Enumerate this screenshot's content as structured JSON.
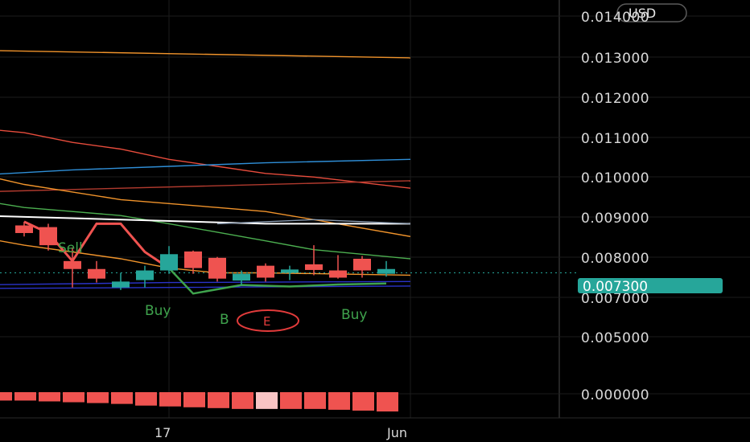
{
  "colors": {
    "background": "#000000",
    "grid": "#1c1c1c",
    "up": "#26a69a",
    "down": "#ef5350",
    "signal": "#3fa34d",
    "ema_white": "#ffffff",
    "ema_blue": "#2f8fd8",
    "ema_red": "#e74c3c",
    "ema_orange": "#f0932b",
    "ema_green": "#4caf50",
    "navy": "#2a33c9",
    "price_tag": "#26a69a"
  },
  "price_axis": {
    "currency": "USD",
    "tick_labels": [
      "0.014000",
      "0.013000",
      "0.012000",
      "0.011000",
      "0.010000",
      "0.009000",
      "0.008000",
      "0.007000",
      "0.005000",
      "0.000000"
    ],
    "current_price": "0.007300"
  },
  "time_axis": {
    "labels": [
      "17",
      "Jun"
    ]
  },
  "signals": {
    "buy_label": "Buy",
    "sell_label": "Sell",
    "b_label": "B",
    "e_label": "E"
  },
  "chart_data": {
    "type": "candlestick",
    "price_scale": "logarithmic",
    "interval": "daily",
    "date_range": [
      "2024-05-11",
      "2024-05-27"
    ],
    "ylim": [
      0.0071,
      0.0143
    ],
    "candles": [
      {
        "date": "2024-05-11",
        "open": 0.00836,
        "high": 0.00845,
        "low": 0.0081,
        "close": 0.00818
      },
      {
        "date": "2024-05-12",
        "open": 0.00832,
        "high": 0.0084,
        "low": 0.00778,
        "close": 0.0079
      },
      {
        "date": "2024-05-13",
        "open": 0.00755,
        "high": 0.00785,
        "low": 0.007,
        "close": 0.00738
      },
      {
        "date": "2024-05-14",
        "open": 0.00738,
        "high": 0.00755,
        "low": 0.0071,
        "close": 0.00718
      },
      {
        "date": "2024-05-15",
        "open": 0.007,
        "high": 0.0073,
        "low": 0.00695,
        "close": 0.00712
      },
      {
        "date": "2024-05-16",
        "open": 0.00715,
        "high": 0.00745,
        "low": 0.007,
        "close": 0.00735
      },
      {
        "date": "2024-05-17",
        "open": 0.00735,
        "high": 0.00788,
        "low": 0.00728,
        "close": 0.0077
      },
      {
        "date": "2024-05-18",
        "open": 0.00776,
        "high": 0.00778,
        "low": 0.00728,
        "close": 0.0074
      },
      {
        "date": "2024-05-19",
        "open": 0.00762,
        "high": 0.00764,
        "low": 0.00712,
        "close": 0.00718
      },
      {
        "date": "2024-05-20",
        "open": 0.00714,
        "high": 0.00735,
        "low": 0.00705,
        "close": 0.00728
      },
      {
        "date": "2024-05-21",
        "open": 0.00745,
        "high": 0.0075,
        "low": 0.00712,
        "close": 0.0072
      },
      {
        "date": "2024-05-22",
        "open": 0.0073,
        "high": 0.00745,
        "low": 0.00715,
        "close": 0.00737
      },
      {
        "date": "2024-05-23",
        "open": 0.00748,
        "high": 0.0079,
        "low": 0.00725,
        "close": 0.00736
      },
      {
        "date": "2024-05-24",
        "open": 0.00735,
        "high": 0.00768,
        "low": 0.00718,
        "close": 0.0072
      },
      {
        "date": "2024-05-25",
        "open": 0.0076,
        "high": 0.00766,
        "low": 0.0072,
        "close": 0.00735
      },
      {
        "date": "2024-05-26",
        "open": 0.00728,
        "high": 0.00755,
        "low": 0.00722,
        "close": 0.00738
      }
    ],
    "indicator_lines": [
      {
        "color": "#f0932b",
        "points": [
          [
            "2024-05-09",
            0.0138
          ],
          [
            "2024-05-27",
            0.0135
          ]
        ]
      },
      {
        "color": "#e74c3c",
        "points": [
          [
            "2024-05-09",
            0.01105
          ],
          [
            "2024-05-11",
            0.0109
          ],
          [
            "2024-05-13",
            0.0106
          ],
          [
            "2024-05-15",
            0.0104
          ],
          [
            "2024-05-17",
            0.0101
          ],
          [
            "2024-05-19",
            0.0099
          ],
          [
            "2024-05-21",
            0.0097
          ],
          [
            "2024-05-23",
            0.0096
          ],
          [
            "2024-05-27",
            0.0093
          ]
        ]
      },
      {
        "color": "#2f8fd8",
        "points": [
          [
            "2024-05-09",
            0.00965
          ],
          [
            "2024-05-13",
            0.0098
          ],
          [
            "2024-05-17",
            0.0099
          ],
          [
            "2024-05-21",
            0.01
          ],
          [
            "2024-05-27",
            0.0101
          ]
        ]
      },
      {
        "color": "#b03a2e",
        "points": [
          [
            "2024-05-09",
            0.0092
          ],
          [
            "2024-05-27",
            0.0095
          ]
        ]
      },
      {
        "color": "#f0932b",
        "points": [
          [
            "2024-05-09",
            0.0097
          ],
          [
            "2024-05-11",
            0.0094
          ],
          [
            "2024-05-13",
            0.0092
          ],
          [
            "2024-05-15",
            0.009
          ],
          [
            "2024-05-17",
            0.0089
          ],
          [
            "2024-05-19",
            0.0088
          ],
          [
            "2024-05-21",
            0.0087
          ],
          [
            "2024-05-23",
            0.0085
          ],
          [
            "2024-05-27",
            0.0081
          ]
        ]
      },
      {
        "color": "#4caf50",
        "points": [
          [
            "2024-05-09",
            0.009
          ],
          [
            "2024-05-11",
            0.0088
          ],
          [
            "2024-05-13",
            0.0087
          ],
          [
            "2024-05-15",
            0.0086
          ],
          [
            "2024-05-17",
            0.0084
          ],
          [
            "2024-05-19",
            0.0082
          ],
          [
            "2024-05-21",
            0.008
          ],
          [
            "2024-05-23",
            0.0078
          ],
          [
            "2024-05-27",
            0.0076
          ]
        ]
      },
      {
        "color": "#ffffff",
        "points": [
          [
            "2024-05-09",
            0.0086
          ],
          [
            "2024-05-15",
            0.0085
          ],
          [
            "2024-05-21",
            0.0084
          ],
          [
            "2024-05-27",
            0.0084
          ]
        ]
      },
      {
        "color": "#8a9bb0",
        "points": [
          [
            "2024-05-19",
            0.0084
          ],
          [
            "2024-05-23",
            0.0085
          ],
          [
            "2024-05-27",
            0.0084
          ]
        ]
      },
      {
        "color": "#f0932b",
        "points": [
          [
            "2024-05-09",
            0.0081
          ],
          [
            "2024-05-11",
            0.0079
          ],
          [
            "2024-05-13",
            0.00775
          ],
          [
            "2024-05-15",
            0.0076
          ],
          [
            "2024-05-17",
            0.0074
          ],
          [
            "2024-05-19",
            0.0073
          ],
          [
            "2024-05-21",
            0.0073
          ],
          [
            "2024-05-27",
            0.00725
          ]
        ]
      },
      {
        "color": "#2a33c9",
        "points": [
          [
            "2024-05-09",
            0.00705
          ],
          [
            "2024-05-17",
            0.0071
          ],
          [
            "2024-05-27",
            0.00712
          ]
        ]
      },
      {
        "color": "#2a33c9",
        "points": [
          [
            "2024-05-09",
            0.00698
          ],
          [
            "2024-05-17",
            0.007
          ],
          [
            "2024-05-27",
            0.00703
          ]
        ]
      }
    ],
    "signal_path": [
      [
        "2024-05-11",
        0.00845
      ],
      [
        "2024-05-12",
        0.00818
      ],
      [
        "2024-05-13",
        0.00755
      ],
      [
        "2024-05-14",
        0.0084
      ],
      [
        "2024-05-15",
        0.0084
      ],
      [
        "2024-05-16",
        0.00775
      ],
      [
        "2024-05-17",
        0.0074
      ]
    ],
    "support_path": [
      [
        "2024-05-17",
        0.0074
      ],
      [
        "2024-05-18",
        0.00688
      ],
      [
        "2024-05-20",
        0.00705
      ],
      [
        "2024-05-22",
        0.00702
      ],
      [
        "2024-05-24",
        0.00706
      ],
      [
        "2024-05-26",
        0.00708
      ]
    ],
    "price_line": 0.0073,
    "histogram": {
      "values": [
        -0.0005,
        -0.0005,
        -0.00055,
        -0.0006,
        -0.00065,
        -0.0007,
        -0.0008,
        -0.00085,
        -0.0009,
        -0.00095,
        -0.001,
        -0.001,
        -0.001,
        -0.001,
        -0.00105,
        -0.0011,
        -0.00115
      ],
      "highlight_index": 11
    }
  }
}
